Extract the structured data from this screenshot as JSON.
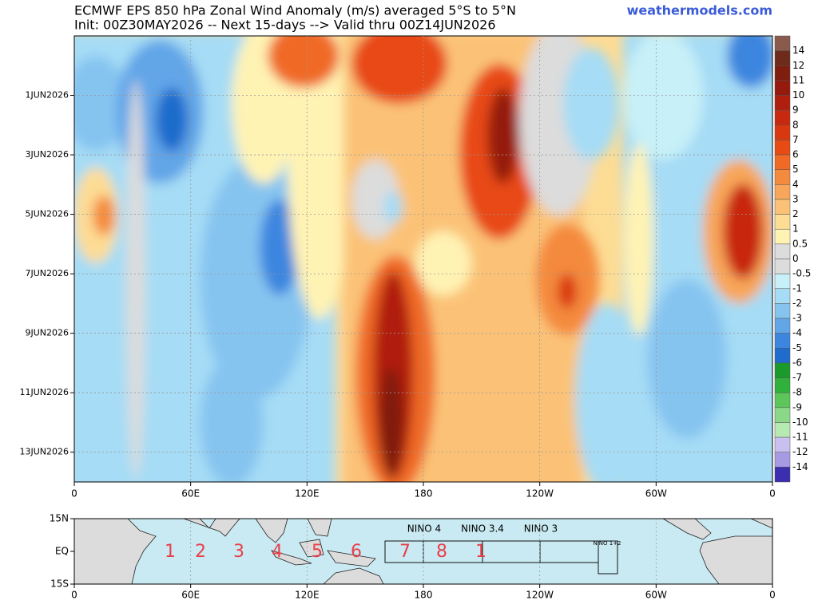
{
  "header": {
    "title": "ECMWF EPS 850 hPa Zonal Wind Anomaly (m/s) averaged 5°S to 5°N",
    "subtitle": "Init: 00Z30MAY2026 -- Next 15-days --> Valid thru 00Z14JUN2026",
    "source": "weathermodels.com"
  },
  "chart_data": {
    "type": "hovmoller",
    "xlim": [
      0,
      360
    ],
    "xticks": [
      0,
      {
        "value": 60,
        "label": "60E"
      },
      {
        "value": 120,
        "label": "120E"
      },
      180,
      {
        "value": 240,
        "label": "120W"
      },
      {
        "value": 300,
        "label": "60W"
      },
      {
        "value": 360,
        "label": "0"
      }
    ],
    "ytick_labels": [
      "1JUN2026",
      "3JUN2026",
      "5JUN2026",
      "7JUN2026",
      "9JUN2026",
      "11JUN2026",
      "13JUN2026"
    ],
    "grid": true,
    "colorbar": {
      "levels": [
        14,
        12,
        11,
        10,
        9,
        8,
        7,
        6,
        5,
        4,
        3,
        2,
        1,
        0.5,
        0,
        -0.5,
        -1,
        -2,
        -3,
        -4,
        -5,
        -6,
        -7,
        -8,
        -9,
        -10,
        -11,
        -12,
        -14
      ],
      "colors": [
        "#8a5a4c",
        "#6e2a1a",
        "#7f1d0f",
        "#951a0d",
        "#b01e0e",
        "#c8280e",
        "#d9370f",
        "#e84a14",
        "#f06a26",
        "#f48a3e",
        "#f8a65a",
        "#fbc277",
        "#fddc94",
        "#fff3b4",
        "#dcdcdc",
        "#dcdcdc",
        "#c7f0f8",
        "#a6dcf5",
        "#86c4f0",
        "#62a6e8",
        "#3d86df",
        "#1f6ccc",
        "#1a9a2a",
        "#2fb13b",
        "#5cc65a",
        "#8ad888",
        "#b6eab0",
        "#c9c0f0",
        "#a69ae4",
        "#3b2fb0"
      ]
    }
  },
  "map": {
    "ylim": [
      -15,
      15
    ],
    "yticks": [
      {
        "value": 15,
        "label": "15N"
      },
      {
        "value": 0,
        "label": "EQ"
      },
      {
        "value": -15,
        "label": "15S"
      }
    ],
    "regions": [
      "NINO 4",
      "NINO 3.4",
      "NINO 3",
      "NINO 1+2"
    ],
    "phases": [
      "1",
      "2",
      "3",
      "4",
      "5",
      "6",
      "7",
      "8",
      "1"
    ]
  }
}
